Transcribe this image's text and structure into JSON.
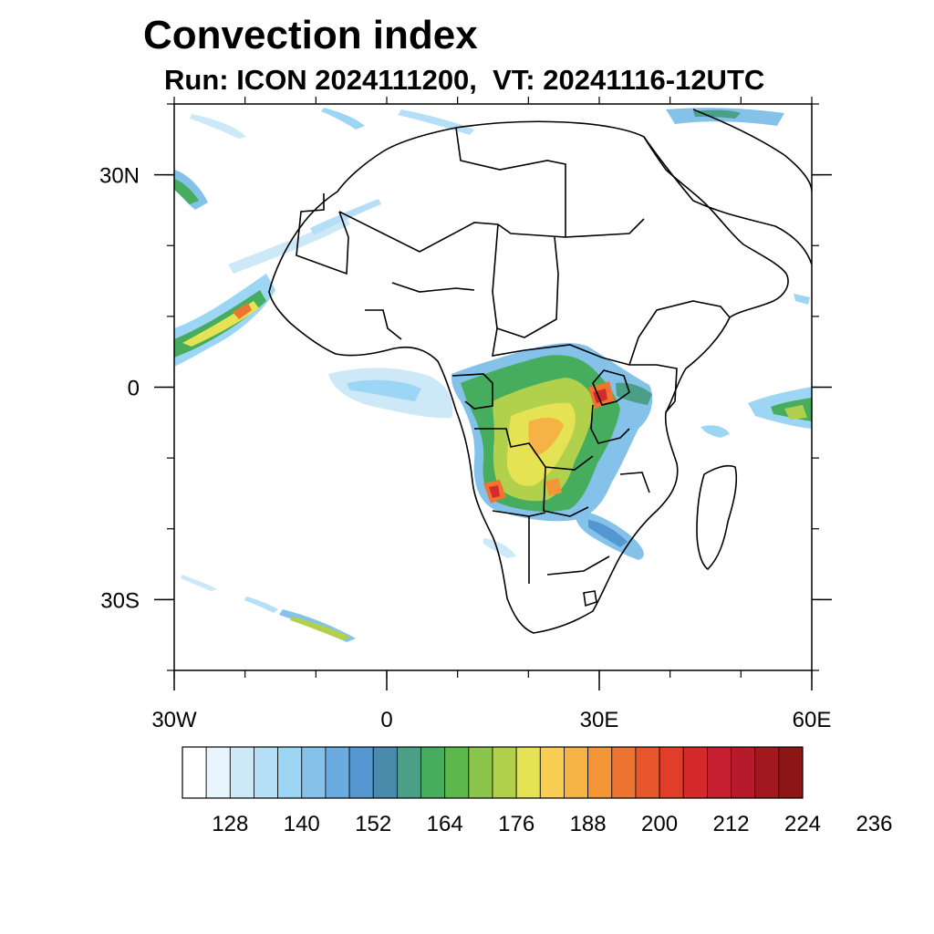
{
  "title": "Convection index",
  "subtitle": "Run: ICON 2024111200,  VT: 20241116-12UTC",
  "map": {
    "lon_range": [
      -30,
      60
    ],
    "lat_range": [
      -40,
      40
    ],
    "lat_ticks": [
      {
        "value": 30,
        "label": "30N"
      },
      {
        "value": 0,
        "label": "0"
      },
      {
        "value": -30,
        "label": "30S"
      }
    ],
    "lon_ticks": [
      {
        "value": -30,
        "label": "30W"
      },
      {
        "value": 0,
        "label": "0"
      },
      {
        "value": 30,
        "label": "30E"
      },
      {
        "value": 60,
        "label": "60E"
      }
    ]
  },
  "colorbar": {
    "colors": [
      "#ffffff",
      "#e8f5fc",
      "#cde9f8",
      "#b4dff6",
      "#9dd6f4",
      "#84c2ea",
      "#6aabe0",
      "#5497d0",
      "#4a8bab",
      "#4b9f86",
      "#47ad5e",
      "#5db84b",
      "#8cc54b",
      "#b1d04b",
      "#e5e253",
      "#f8cf53",
      "#f6b345",
      "#f39638",
      "#ee7531",
      "#e8572b",
      "#e03d2a",
      "#d42a2c",
      "#c62030",
      "#b61b2c",
      "#a3181f",
      "#8c1616"
    ],
    "labels": [
      "128",
      "140",
      "152",
      "164",
      "176",
      "188",
      "200",
      "212",
      "224",
      "236"
    ]
  }
}
